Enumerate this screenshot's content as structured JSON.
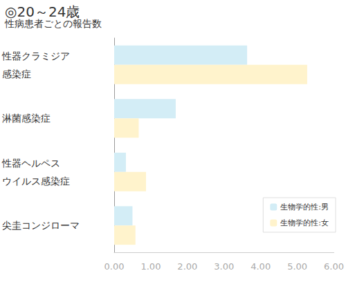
{
  "chart_data": {
    "type": "bar",
    "orientation": "horizontal",
    "title": "◎20～24歳",
    "subtitle": "性病患者ごとの報告数",
    "categories": [
      "性器クラミジア\n感染症",
      "淋菌感染症",
      "性器ヘルペス\nウイルス感染症",
      "尖圭コンジローマ"
    ],
    "series": [
      {
        "name": "生物学的性:男",
        "color": "#d3edf6",
        "values": [
          3.63,
          1.68,
          0.32,
          0.5
        ]
      },
      {
        "name": "生物学的性:女",
        "color": "#fff3cc",
        "values": [
          5.27,
          0.67,
          0.87,
          0.58
        ]
      }
    ],
    "xlim": [
      0,
      6
    ],
    "xticks": [
      {
        "value": 0,
        "label": "0.00"
      },
      {
        "value": 1,
        "label": "1.00"
      },
      {
        "value": 2,
        "label": "2.00"
      },
      {
        "value": 3,
        "label": "3.00"
      },
      {
        "value": 4,
        "label": "4.00"
      },
      {
        "value": 5,
        "label": "5.00"
      },
      {
        "value": 6,
        "label": "6.00"
      }
    ],
    "grid": false,
    "legend": "lower right"
  }
}
